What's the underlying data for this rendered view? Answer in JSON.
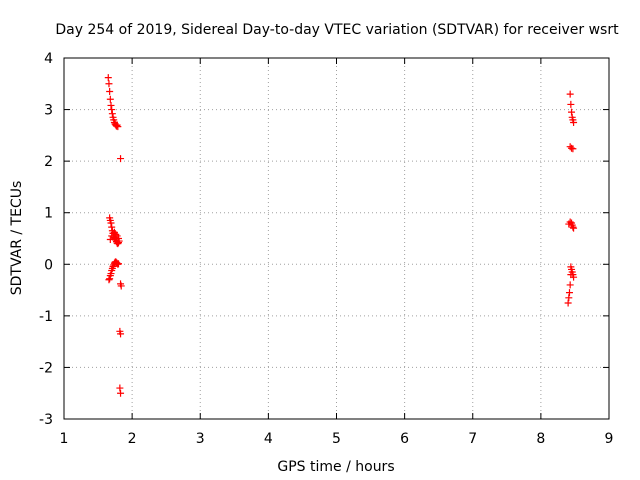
{
  "chart_data": {
    "type": "scatter",
    "title": "Day 254 of 2019, Sidereal Day-to-day VTEC variation (SDTVAR) for receiver wsrt",
    "xlabel": "GPS time / hours",
    "ylabel": "SDTVAR / TECUs",
    "xlim": [
      1,
      9
    ],
    "ylim": [
      -3,
      4
    ],
    "xticks": [
      "1",
      "2",
      "3",
      "4",
      "5",
      "6",
      "7",
      "8",
      "9"
    ],
    "yticks": [
      "-3",
      "-2",
      "-1",
      "0",
      "1",
      "2",
      "3",
      "4"
    ],
    "grid": true,
    "marker": "+",
    "color": "#ff0000",
    "series": [
      {
        "name": "wsrt",
        "x": [
          1.65,
          1.66,
          1.67,
          1.68,
          1.69,
          1.7,
          1.71,
          1.72,
          1.73,
          1.74,
          1.75,
          1.76,
          1.77,
          1.78,
          1.79,
          1.83,
          1.67,
          1.68,
          1.69,
          1.7,
          1.71,
          1.72,
          1.73,
          1.74,
          1.75,
          1.76,
          1.77,
          1.78,
          1.79,
          1.8,
          1.81,
          1.68,
          1.7,
          1.72,
          1.74,
          1.76,
          1.78,
          1.8,
          1.66,
          1.67,
          1.68,
          1.69,
          1.7,
          1.71,
          1.72,
          1.73,
          1.74,
          1.75,
          1.76,
          1.77,
          1.78,
          1.79,
          1.8,
          1.83,
          1.84,
          1.82,
          1.83,
          1.82,
          1.83,
          8.43,
          8.44,
          8.45,
          8.46,
          8.47,
          8.48,
          8.43,
          8.45,
          8.47,
          8.41,
          8.43,
          8.45,
          8.46,
          8.47,
          8.48,
          8.44,
          8.45,
          8.46,
          8.47,
          8.48,
          8.43,
          8.42,
          8.41,
          8.4,
          8.44
        ],
        "y": [
          3.62,
          3.5,
          3.35,
          3.2,
          3.08,
          3.0,
          2.92,
          2.85,
          2.8,
          2.75,
          2.72,
          2.7,
          2.68,
          2.7,
          2.67,
          2.05,
          0.9,
          0.85,
          0.8,
          0.72,
          0.65,
          0.6,
          0.55,
          0.52,
          0.5,
          0.47,
          0.44,
          0.41,
          0.4,
          0.42,
          0.45,
          0.48,
          0.55,
          0.6,
          0.62,
          0.58,
          0.55,
          0.5,
          -0.3,
          -0.28,
          -0.22,
          -0.18,
          -0.12,
          -0.08,
          -0.04,
          -0.01,
          0.02,
          0.04,
          0.05,
          0.03,
          0.02,
          0.0,
          0.01,
          -0.38,
          -0.42,
          -1.3,
          -1.35,
          -2.4,
          -2.5,
          3.3,
          3.1,
          2.95,
          2.85,
          2.8,
          2.75,
          2.28,
          2.25,
          2.24,
          0.78,
          0.82,
          0.8,
          0.76,
          0.72,
          0.7,
          -0.05,
          -0.1,
          -0.15,
          -0.2,
          -0.25,
          -0.4,
          -0.55,
          -0.65,
          -0.75,
          -0.2
        ]
      }
    ]
  }
}
